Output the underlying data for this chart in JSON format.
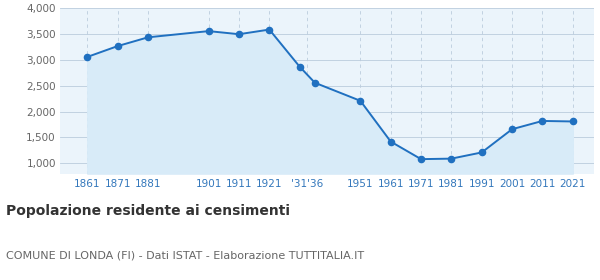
{
  "years": [
    1861,
    1871,
    1881,
    1901,
    1911,
    1921,
    1931,
    1936,
    1951,
    1961,
    1971,
    1981,
    1991,
    2001,
    2011,
    2021
  ],
  "population": [
    3060,
    3270,
    3440,
    3560,
    3500,
    3590,
    2870,
    2560,
    2210,
    1420,
    1080,
    1090,
    1210,
    1660,
    1820,
    1810
  ],
  "line_color": "#2070C0",
  "fill_color": "#D8EBF8",
  "marker_color": "#2070C0",
  "bg_color": "#FFFFFF",
  "axes_bg_color": "#EBF4FB",
  "grid_color": "#BBCCDD",
  "ylim": [
    800,
    4000
  ],
  "yticks": [
    1000,
    1500,
    2000,
    2500,
    3000,
    3500,
    4000
  ],
  "xtick_positions": [
    1861,
    1871,
    1881,
    1901,
    1911,
    1921,
    1933.5,
    1951,
    1961,
    1971,
    1981,
    1991,
    2001,
    2011,
    2021
  ],
  "xtick_labels": [
    "1861",
    "1871",
    "1881",
    "1901",
    "1911",
    "1921",
    "'31'36",
    "1951",
    "1961",
    "1971",
    "1981",
    "1991",
    "2001",
    "2011",
    "2021"
  ],
  "xlim": [
    1852,
    2028
  ],
  "tick_color": "#3377BB",
  "ytick_color": "#666666",
  "title": "Popolazione residente ai censimenti",
  "subtitle": "COMUNE DI LONDA (FI) - Dati ISTAT - Elaborazione TUTTITALIA.IT",
  "title_fontsize": 10,
  "subtitle_fontsize": 8,
  "marker_size": 20
}
